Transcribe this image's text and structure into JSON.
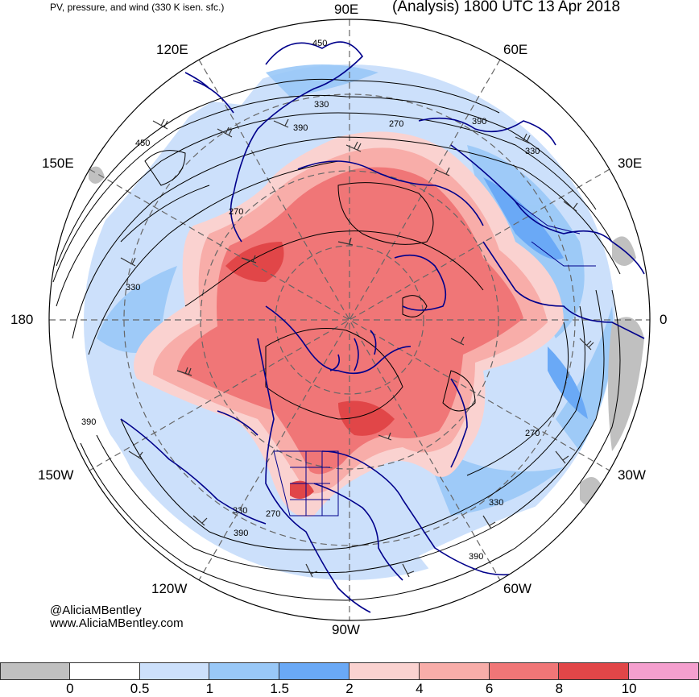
{
  "header": {
    "subtitle": "PV, pressure, and wind (330 K isen. sfc.)",
    "title": "(Analysis) 1800 UTC 13 Apr 2018"
  },
  "map": {
    "projection": "north polar stereographic",
    "longitude_labels": [
      "90E",
      "60E",
      "30E",
      "0",
      "30W",
      "60W",
      "90W",
      "120W",
      "150W",
      "180",
      "150E",
      "120E"
    ],
    "contour_labels": [
      "450",
      "330",
      "390",
      "270",
      "450",
      "390",
      "330",
      "270",
      "330",
      "390",
      "270",
      "330",
      "330",
      "270",
      "390",
      "390"
    ],
    "colors": {
      "coastline": "#00008b",
      "contour": "#000000",
      "graticule": "#666666"
    }
  },
  "credits": {
    "handle": "@AliciaMBentley",
    "website": "www.AliciaMBentley.com"
  },
  "colorbar": {
    "colors": [
      "#c0c0c0",
      "#ffffff",
      "#cce0fb",
      "#99c8f7",
      "#6aa9f6",
      "#fad2d0",
      "#f8ada9",
      "#f07677",
      "#e14648",
      "#f49fce"
    ],
    "tick_labels": [
      "0",
      "0.5",
      "1",
      "1.5",
      "2",
      "4",
      "6",
      "8",
      "10"
    ]
  }
}
